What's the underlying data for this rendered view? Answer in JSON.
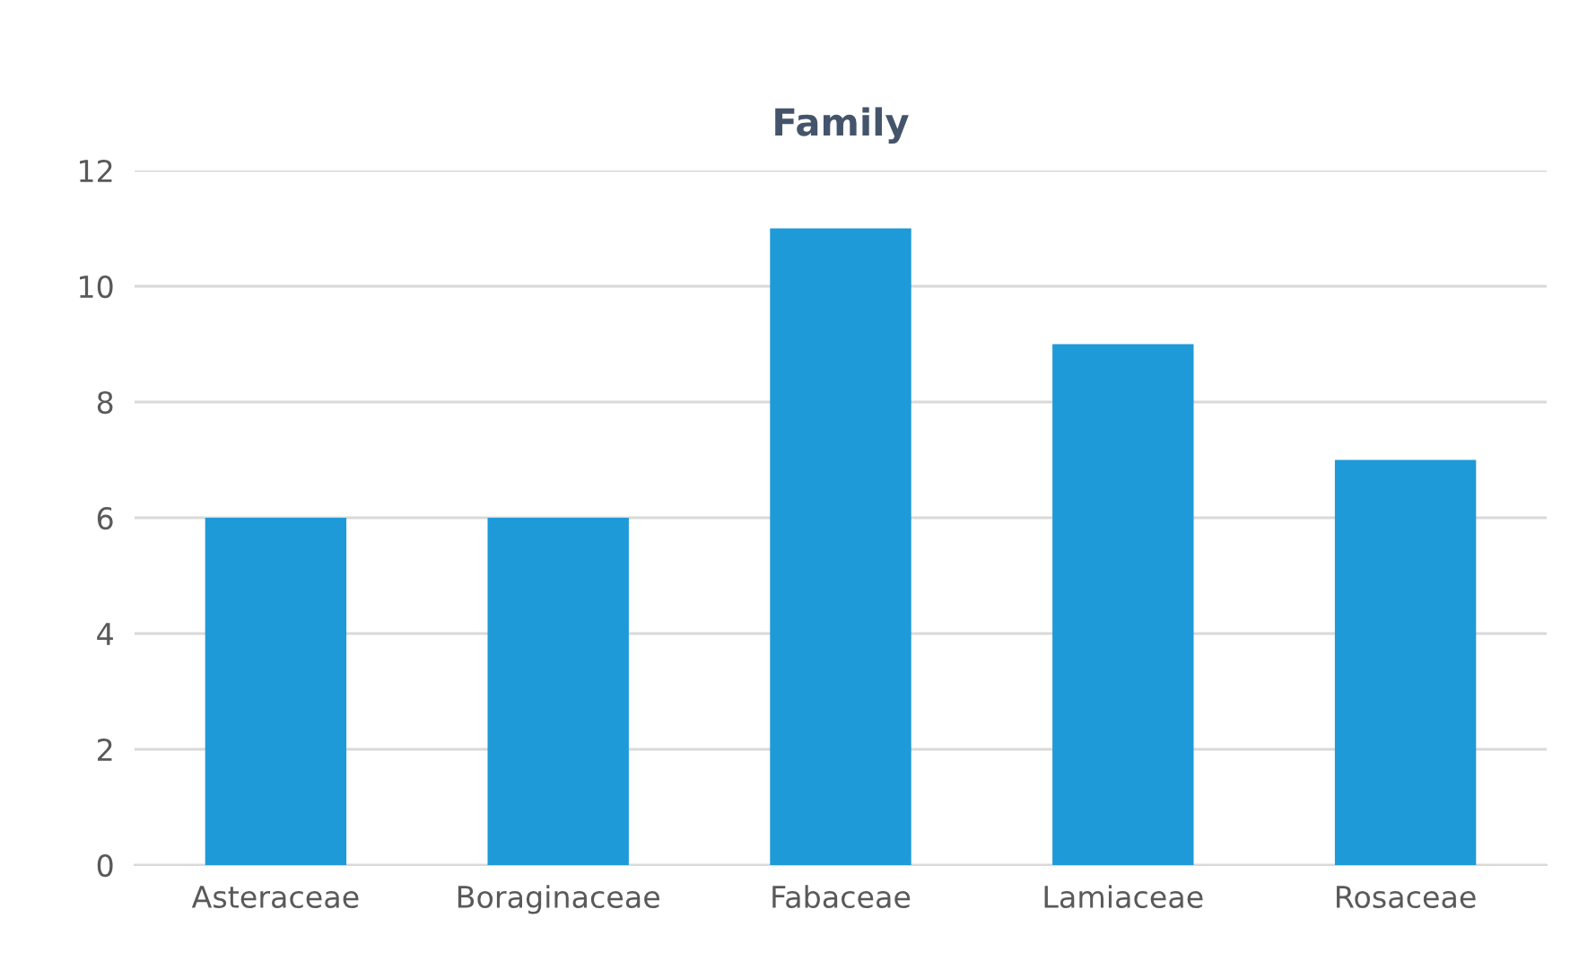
{
  "chart_data": {
    "type": "bar",
    "title": "Family",
    "categories": [
      "Asteraceae",
      "Boraginaceae",
      "Fabaceae",
      "Lamiaceae",
      "Rosaceae"
    ],
    "values": [
      6,
      6,
      11,
      9,
      7
    ],
    "color": "#1f9ad8",
    "ylim": [
      0,
      12
    ],
    "yticks": [
      0,
      2,
      4,
      6,
      8,
      10,
      12
    ],
    "grid": "y"
  }
}
